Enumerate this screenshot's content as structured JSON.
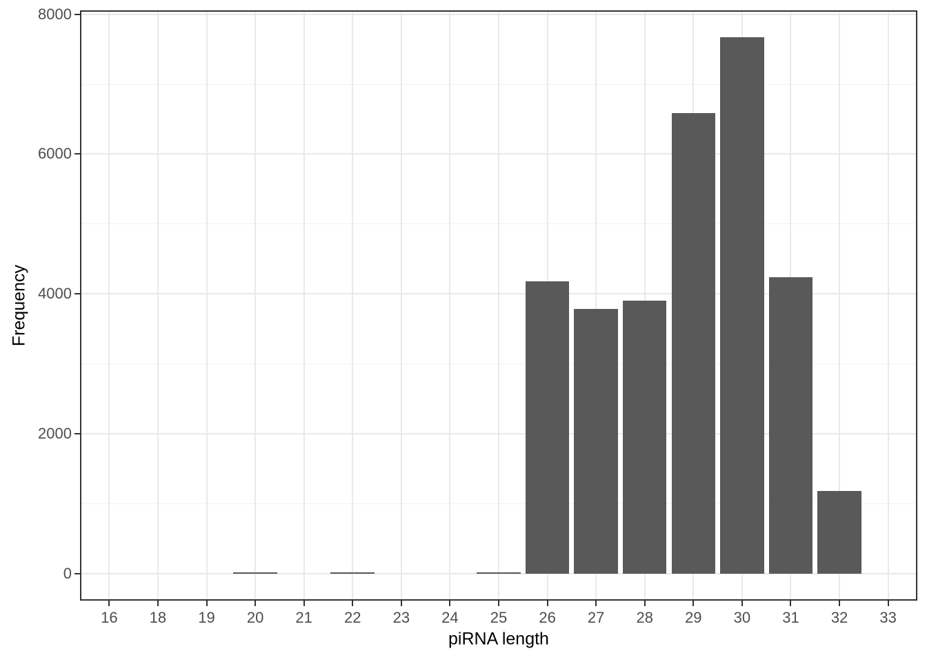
{
  "chart_data": {
    "type": "bar",
    "title": "",
    "xlabel": "piRNA length",
    "ylabel": "Frequency",
    "categories": [
      "16",
      "18",
      "19",
      "20",
      "21",
      "22",
      "23",
      "24",
      "25",
      "26",
      "27",
      "28",
      "29",
      "30",
      "31",
      "32",
      "33"
    ],
    "values": [
      3,
      3,
      3,
      20,
      3,
      18,
      3,
      3,
      18,
      4180,
      3790,
      3900,
      6590,
      7670,
      4240,
      1180,
      3
    ],
    "y_major_ticks": [
      0,
      2000,
      4000,
      6000,
      8000
    ],
    "y_minor_ticks": [
      1000,
      3000,
      5000,
      7000
    ],
    "ylim_display": [
      -384,
      8055
    ],
    "bar_rel_width": 0.9,
    "grid": "horizontal major+minor, vertical major at each category",
    "legend_position": "none"
  },
  "colors": {
    "bar_fill": "#595959",
    "grid_major": "#e9e9e9",
    "grid_minor": "#f2f2f2",
    "panel_border": "#333333",
    "tick_mark": "#333333",
    "tick_label": "#4d4d4d",
    "axis_title": "#000000",
    "background": "#ffffff"
  }
}
